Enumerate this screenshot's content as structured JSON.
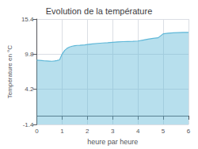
{
  "chart_data": {
    "type": "line",
    "title": "Evolution de la température",
    "xlabel": "heure par heure",
    "ylabel": "Température en °C",
    "color": "#60b8d8",
    "xlim": [
      0,
      6
    ],
    "ylim": [
      -1.4,
      15.4
    ],
    "xticks": [
      0,
      1,
      2,
      3,
      4,
      5,
      6
    ],
    "yticks": [
      -1.4,
      4.2,
      9.8,
      15.4
    ],
    "grid": true,
    "x": [
      0.0,
      0.1,
      0.2,
      0.3,
      0.4,
      0.5,
      0.6,
      0.7,
      0.8,
      0.9,
      1.0,
      1.1,
      1.2,
      1.3,
      1.4,
      1.5,
      1.6,
      1.7,
      1.8,
      1.9,
      2.0,
      2.2,
      2.4,
      2.6,
      2.8,
      3.0,
      3.2,
      3.4,
      3.6,
      3.8,
      4.0,
      4.2,
      4.4,
      4.6,
      4.8,
      5.0,
      5.2,
      5.4,
      5.6,
      5.8,
      6.0
    ],
    "values": [
      8.85,
      8.82,
      8.78,
      8.74,
      8.72,
      8.7,
      8.68,
      8.72,
      8.78,
      8.9,
      9.8,
      10.4,
      10.75,
      10.95,
      11.08,
      11.15,
      11.2,
      11.22,
      11.25,
      11.28,
      11.35,
      11.45,
      11.52,
      11.58,
      11.62,
      11.7,
      11.76,
      11.8,
      11.83,
      11.86,
      11.9,
      12.05,
      12.2,
      12.32,
      12.42,
      13.05,
      13.15,
      13.2,
      13.25,
      13.28,
      13.28
    ]
  }
}
